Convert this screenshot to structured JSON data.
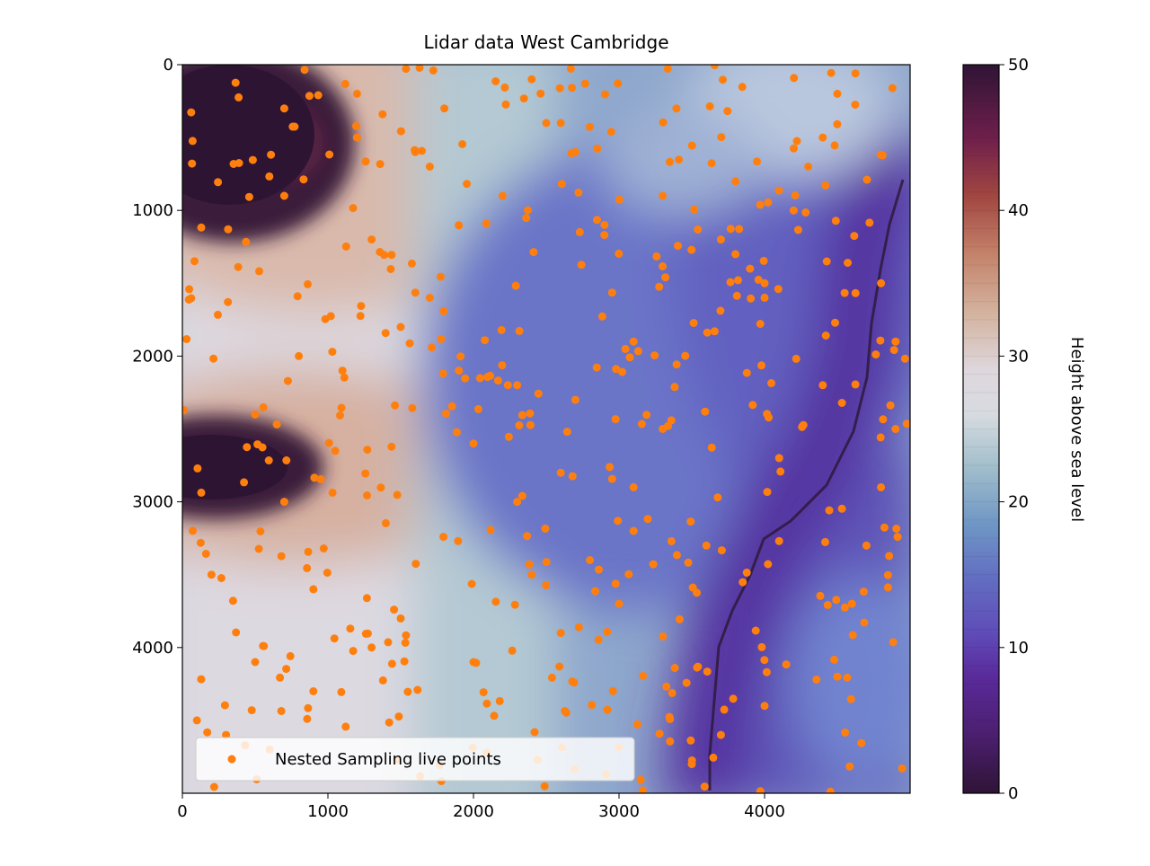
{
  "chart_data": {
    "type": "heatmap",
    "title": "Lidar data West Cambridge",
    "xlabel": "",
    "ylabel": "",
    "xlim": [
      0,
      5000
    ],
    "ylim": [
      5000,
      0
    ],
    "xticks": [
      0,
      1000,
      2000,
      3000,
      4000
    ],
    "yticks": [
      0,
      1000,
      2000,
      3000,
      4000
    ],
    "grid": false,
    "colorbar": {
      "label": "Height above sea level",
      "range": [
        0,
        50
      ],
      "ticks": [
        0,
        10,
        20,
        30,
        40,
        50
      ],
      "levels": 40,
      "colormap": [
        "#2f1436",
        "#5a2a8f",
        "#5f63c0",
        "#6d93c4",
        "#b9cdd5",
        "#e3dde4",
        "#cfa890",
        "#a9553b",
        "#5e1a4c",
        "#2f1436"
      ]
    },
    "series": [
      {
        "name": "Nested Sampling live points",
        "color": "#ff7f0e",
        "points_description": "about 480 sampled positions scattered over the map",
        "x": [
          2400,
          1200,
          1800,
          2500,
          2700,
          3800,
          3700,
          4000,
          1500,
          1100,
          500,
          2000,
          2600,
          2300,
          3100,
          2800,
          900,
          1500,
          1300,
          4500,
          4000,
          3700,
          3500,
          700,
          3100,
          2700,
          3300,
          2300,
          1900,
          1700,
          1300,
          700,
          4500,
          4400,
          4300,
          4200,
          3900,
          3100,
          2400,
          2600,
          900,
          600,
          300,
          500,
          4600,
          4700,
          4800,
          4900,
          4900,
          4800,
          2900,
          2200,
          1700,
          1200,
          700,
          200,
          100,
          2000,
          3000,
          3600,
          4100,
          4400,
          3800,
          3300,
          2600,
          1600,
          800
        ],
        "y": [
          100,
          200,
          300,
          400,
          600,
          800,
          1200,
          1500,
          1800,
          2100,
          2400,
          2600,
          2800,
          3000,
          3200,
          3400,
          3600,
          3800,
          4000,
          4200,
          4400,
          4600,
          4800,
          3000,
          2900,
          2300,
          2500,
          2200,
          2100,
          1600,
          1200,
          900,
          200,
          500,
          700,
          1000,
          1400,
          1900,
          3500,
          3900,
          4300,
          4700,
          4600,
          4100,
          3700,
          3300,
          2900,
          2500,
          1900,
          1500,
          1100,
          900,
          700,
          500,
          300,
          3500,
          4500,
          4100,
          3700,
          3300,
          2700,
          2200,
          1300,
          900,
          400,
          600,
          2000
        ]
      }
    ],
    "legend": {
      "label": "Nested Sampling live points",
      "placement": "lower-left"
    }
  }
}
